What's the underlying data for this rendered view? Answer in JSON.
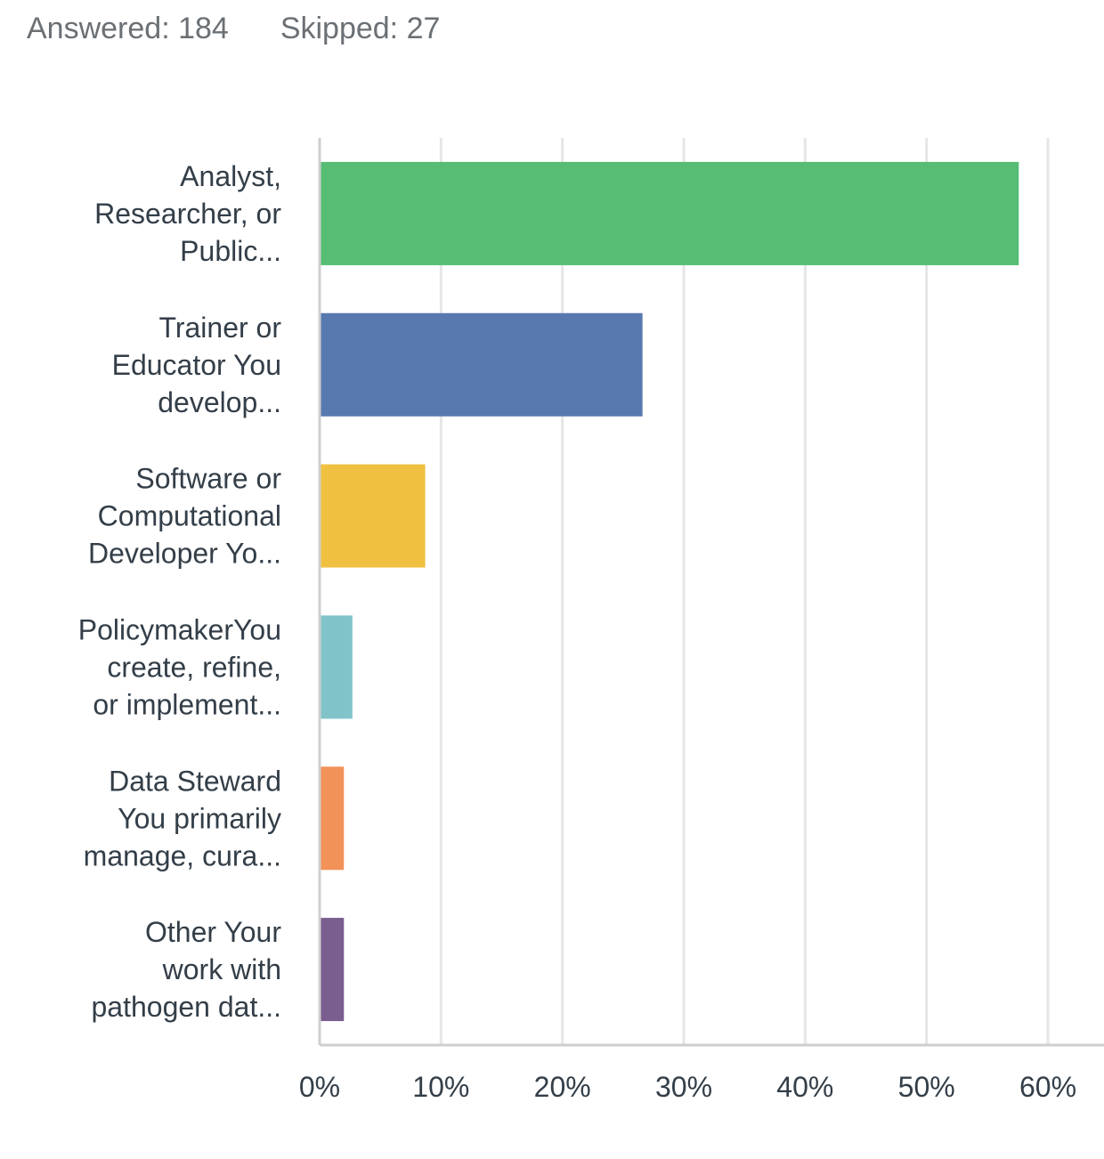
{
  "summary": {
    "answered": "Answered: 184",
    "skipped": "Skipped: 27"
  },
  "chart_data": {
    "type": "bar",
    "orientation": "horizontal",
    "categories": [
      [
        "Analyst,",
        "Researcher, or",
        "Public..."
      ],
      [
        "Trainer or",
        "Educator You",
        "develop..."
      ],
      [
        "Software or",
        "Computational",
        "Developer Yo..."
      ],
      [
        "PolicymakerYou",
        "create, refine,",
        "or implement..."
      ],
      [
        "Data Steward",
        "You primarily",
        "manage, cura..."
      ],
      [
        "Other Your",
        "work with",
        "pathogen dat..."
      ]
    ],
    "values": [
      57.6,
      26.6,
      8.7,
      2.7,
      2.0,
      2.0
    ],
    "colors": [
      "#57bd74",
      "#5878b0",
      "#f0c141",
      "#80c4ca",
      "#f29259",
      "#7a5e8f"
    ],
    "xlim": [
      0,
      60
    ],
    "xticks": [
      0,
      10,
      20,
      30,
      40,
      50,
      60
    ],
    "xtick_labels": [
      "0%",
      "10%",
      "20%",
      "30%",
      "40%",
      "50%",
      "60%"
    ],
    "grid": true,
    "legend": false
  }
}
